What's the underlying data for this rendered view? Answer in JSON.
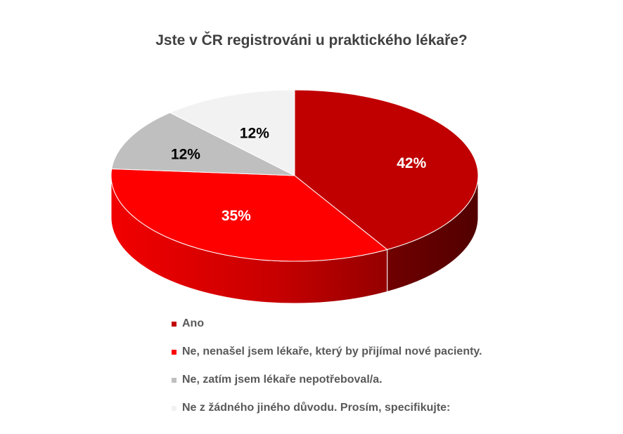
{
  "chart_data": {
    "type": "pie",
    "title": "Jste v ČR registrováni u praktického lékaře?",
    "legend_position": "bottom",
    "slices": [
      {
        "label": "Ano",
        "value": 42,
        "value_label": "42%",
        "color": "#c00000",
        "label_color": "#ffffff"
      },
      {
        "label": "Ne, nenašel jsem lékaře, který by přijímal nové pacienty.",
        "value": 35,
        "value_label": "35%",
        "color": "#ff0000",
        "label_color": "#ffffff"
      },
      {
        "label": "Ne, zatím jsem lékaře nepotřeboval/a.",
        "value": 12,
        "value_label": "12%",
        "color": "#bfbfbf",
        "label_color": "#000000"
      },
      {
        "label": "Ne z žádného jiného důvodu. Prosím, specifikujte:",
        "value": 12,
        "value_label": "12%",
        "color": "#f2f2f2",
        "label_color": "#000000"
      }
    ]
  }
}
